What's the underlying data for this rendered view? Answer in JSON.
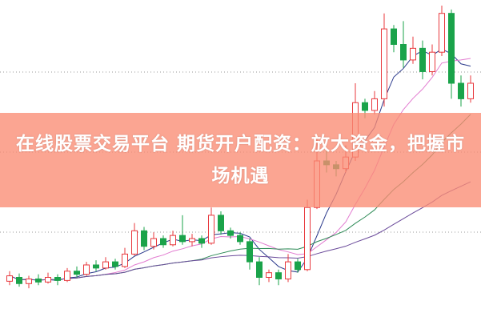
{
  "title": "在线股票交易平台 期货开户配资：放大资金，把握市场机遇",
  "colors": {
    "up": "#e8383d",
    "down": "#1aa34a",
    "flat": "#8a7a2a",
    "banner": "#fa8c73",
    "grid": "#9a9a9a"
  },
  "chart_data": {
    "type": "candlestick",
    "candles": [
      [
        45,
        52,
        58,
        40
      ],
      [
        50,
        42,
        55,
        38
      ],
      [
        42,
        48,
        52,
        36
      ],
      [
        48,
        44,
        54,
        40
      ],
      [
        44,
        50,
        56,
        42
      ],
      [
        50,
        46,
        54,
        40
      ],
      [
        46,
        58,
        62,
        44
      ],
      [
        58,
        54,
        64,
        50
      ],
      [
        54,
        66,
        70,
        52
      ],
      [
        66,
        62,
        72,
        58
      ],
      [
        62,
        70,
        76,
        60
      ],
      [
        70,
        64,
        74,
        60
      ],
      [
        64,
        80,
        88,
        62
      ],
      [
        80,
        110,
        120,
        78
      ],
      [
        110,
        90,
        115,
        85
      ],
      [
        90,
        100,
        108,
        86
      ],
      [
        100,
        92,
        104,
        88
      ],
      [
        92,
        104,
        110,
        90
      ],
      [
        104,
        96,
        130,
        92
      ],
      [
        96,
        100,
        106,
        90
      ],
      [
        100,
        94,
        104,
        88
      ],
      [
        94,
        130,
        140,
        92
      ],
      [
        130,
        110,
        135,
        105
      ],
      [
        110,
        104,
        114,
        100
      ],
      [
        104,
        96,
        108,
        92
      ],
      [
        96,
        70,
        100,
        60
      ],
      [
        70,
        50,
        76,
        40
      ],
      [
        50,
        56,
        60,
        44
      ],
      [
        56,
        48,
        60,
        40
      ],
      [
        48,
        70,
        80,
        44
      ],
      [
        70,
        60,
        74,
        56
      ],
      [
        60,
        140,
        150,
        58
      ],
      [
        140,
        200,
        230,
        138
      ],
      [
        200,
        195,
        215,
        185
      ],
      [
        195,
        190,
        200,
        180
      ],
      [
        190,
        205,
        220,
        185
      ],
      [
        205,
        275,
        300,
        200
      ],
      [
        275,
        265,
        280,
        255
      ],
      [
        265,
        280,
        290,
        260
      ],
      [
        280,
        370,
        390,
        270
      ],
      [
        370,
        350,
        375,
        340
      ],
      [
        350,
        330,
        380,
        320
      ],
      [
        330,
        345,
        360,
        325
      ],
      [
        345,
        315,
        355,
        305
      ],
      [
        315,
        340,
        350,
        310
      ],
      [
        340,
        390,
        400,
        335
      ],
      [
        390,
        300,
        395,
        280
      ],
      [
        300,
        280,
        310,
        270
      ],
      [
        280,
        300,
        310,
        275
      ]
    ],
    "moving_averages": [
      {
        "period": 5,
        "color": "#2b3a8c"
      },
      {
        "period": 10,
        "color": "#e27bd0"
      },
      {
        "period": 20,
        "color": "#2e8b57"
      },
      {
        "period": 40,
        "color": "#6a4a9a"
      }
    ],
    "grid": true
  }
}
